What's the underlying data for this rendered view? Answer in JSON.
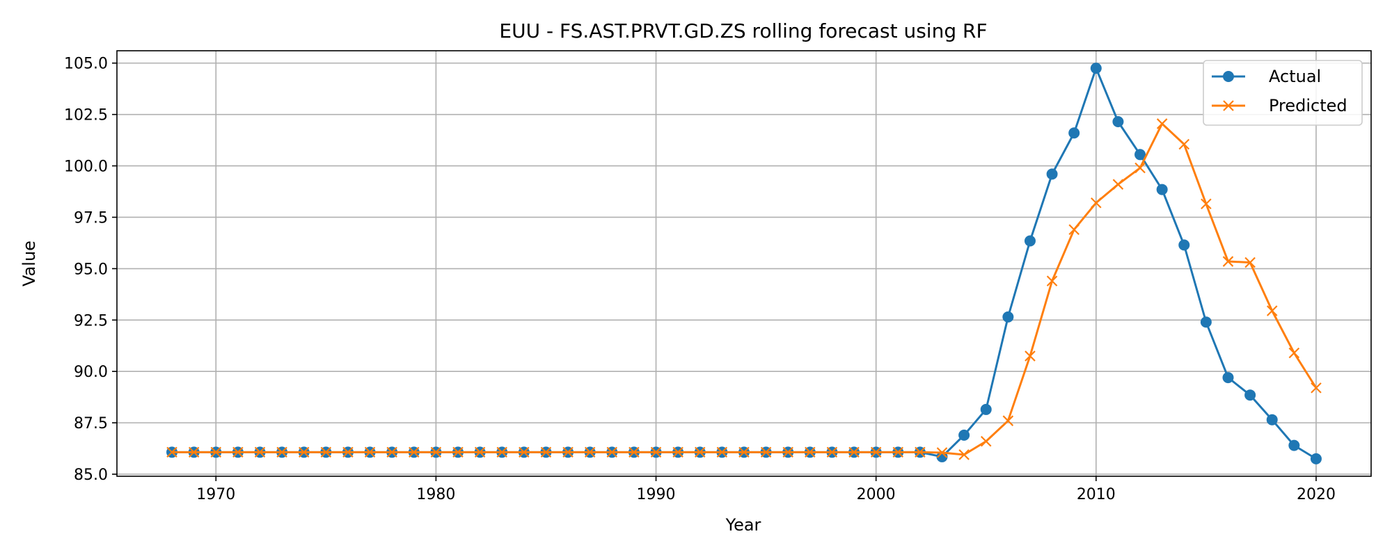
{
  "chart_data": {
    "type": "line",
    "title": "EUU - FS.AST.PRVT.GD.ZS rolling forecast using RF",
    "xlabel": "Year",
    "ylabel": "Value",
    "xlim": [
      1965.5,
      2022.5
    ],
    "ylim": [
      84.9,
      105.6
    ],
    "xticks": [
      1970,
      1980,
      1990,
      2000,
      2010,
      2020
    ],
    "yticks": [
      85.0,
      87.5,
      90.0,
      92.5,
      95.0,
      97.5,
      100.0,
      102.5,
      105.0
    ],
    "grid": true,
    "legend_position": "top-right",
    "x": [
      1968,
      1969,
      1970,
      1971,
      1972,
      1973,
      1974,
      1975,
      1976,
      1977,
      1978,
      1979,
      1980,
      1981,
      1982,
      1983,
      1984,
      1985,
      1986,
      1987,
      1988,
      1989,
      1990,
      1991,
      1992,
      1993,
      1994,
      1995,
      1996,
      1997,
      1998,
      1999,
      2000,
      2001,
      2002,
      2003,
      2004,
      2005,
      2006,
      2007,
      2008,
      2009,
      2010,
      2011,
      2012,
      2013,
      2014,
      2015,
      2016,
      2017,
      2018,
      2019,
      2020
    ],
    "series": [
      {
        "name": "Actual",
        "color": "#1f77b4",
        "marker": "circle",
        "values": [
          86.07,
          86.07,
          86.07,
          86.07,
          86.07,
          86.07,
          86.07,
          86.07,
          86.07,
          86.07,
          86.07,
          86.07,
          86.07,
          86.07,
          86.07,
          86.07,
          86.07,
          86.07,
          86.07,
          86.07,
          86.07,
          86.07,
          86.07,
          86.07,
          86.07,
          86.07,
          86.07,
          86.07,
          86.07,
          86.07,
          86.07,
          86.07,
          86.07,
          86.07,
          86.07,
          85.85,
          86.9,
          88.15,
          92.65,
          96.35,
          99.6,
          101.6,
          104.75,
          102.15,
          100.55,
          98.85,
          96.15,
          92.4,
          89.7,
          88.85,
          87.65,
          86.4,
          85.75
        ]
      },
      {
        "name": "Predicted",
        "color": "#ff7f0e",
        "marker": "x",
        "values": [
          86.07,
          86.07,
          86.07,
          86.07,
          86.07,
          86.07,
          86.07,
          86.07,
          86.07,
          86.07,
          86.07,
          86.07,
          86.07,
          86.07,
          86.07,
          86.07,
          86.07,
          86.07,
          86.07,
          86.07,
          86.07,
          86.07,
          86.07,
          86.07,
          86.07,
          86.07,
          86.07,
          86.07,
          86.07,
          86.07,
          86.07,
          86.07,
          86.07,
          86.07,
          86.07,
          86.05,
          85.95,
          86.6,
          87.6,
          90.75,
          94.4,
          96.9,
          98.2,
          99.1,
          99.9,
          102.05,
          101.05,
          98.15,
          95.35,
          95.3,
          92.95,
          90.9,
          89.2
        ]
      }
    ]
  }
}
